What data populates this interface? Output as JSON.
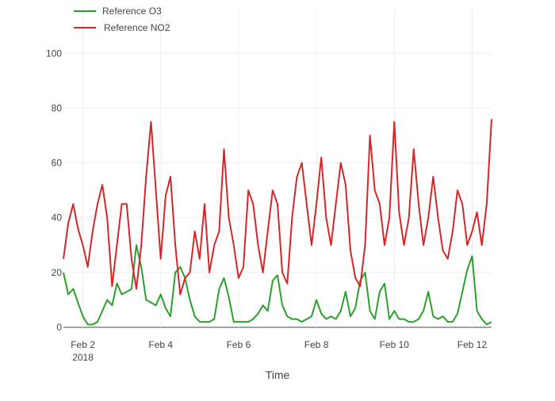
{
  "chart_data": {
    "type": "line",
    "title": "",
    "xlabel": "Time",
    "ylabel": "",
    "ylim": [
      0,
      105
    ],
    "xlim": [
      "2018-02-01 12:00",
      "2018-02-12 12:00"
    ],
    "grid": true,
    "legend_position": "top-left",
    "y_ticks": [
      "0",
      "20",
      "40",
      "60",
      "80",
      "100"
    ],
    "x_ticks": [
      {
        "date": "2018-02-02",
        "label": "Feb 2",
        "sublabel": "2018"
      },
      {
        "date": "2018-02-04",
        "label": "Feb 4",
        "sublabel": ""
      },
      {
        "date": "2018-02-06",
        "label": "Feb 6",
        "sublabel": ""
      },
      {
        "date": "2018-02-08",
        "label": "Feb 8",
        "sublabel": ""
      },
      {
        "date": "2018-02-10",
        "label": "Feb 10",
        "sublabel": ""
      },
      {
        "date": "2018-02-12",
        "label": "Feb 12",
        "sublabel": ""
      }
    ],
    "series": [
      {
        "name": "Reference O3",
        "color": "#2ca02c",
        "x": [
          "2018-02-01 12:00",
          "2018-02-01 15:00",
          "2018-02-01 18:00",
          "2018-02-01 21:00",
          "2018-02-02 00:00",
          "2018-02-02 03:00",
          "2018-02-02 06:00",
          "2018-02-02 09:00",
          "2018-02-02 12:00",
          "2018-02-02 15:00",
          "2018-02-02 18:00",
          "2018-02-02 21:00",
          "2018-02-03 00:00",
          "2018-02-03 03:00",
          "2018-02-03 06:00",
          "2018-02-03 09:00",
          "2018-02-03 12:00",
          "2018-02-03 15:00",
          "2018-02-03 18:00",
          "2018-02-03 21:00",
          "2018-02-04 00:00",
          "2018-02-04 03:00",
          "2018-02-04 06:00",
          "2018-02-04 09:00",
          "2018-02-04 12:00",
          "2018-02-04 15:00",
          "2018-02-04 18:00",
          "2018-02-04 21:00",
          "2018-02-05 00:00",
          "2018-02-05 03:00",
          "2018-02-05 06:00",
          "2018-02-05 09:00",
          "2018-02-05 12:00",
          "2018-02-05 15:00",
          "2018-02-05 18:00",
          "2018-02-05 21:00",
          "2018-02-06 00:00",
          "2018-02-06 03:00",
          "2018-02-06 06:00",
          "2018-02-06 09:00",
          "2018-02-06 12:00",
          "2018-02-06 15:00",
          "2018-02-06 18:00",
          "2018-02-06 21:00",
          "2018-02-07 00:00",
          "2018-02-07 03:00",
          "2018-02-07 06:00",
          "2018-02-07 09:00",
          "2018-02-07 12:00",
          "2018-02-07 15:00",
          "2018-02-07 18:00",
          "2018-02-07 21:00",
          "2018-02-08 00:00",
          "2018-02-08 03:00",
          "2018-02-08 06:00",
          "2018-02-08 09:00",
          "2018-02-08 12:00",
          "2018-02-08 15:00",
          "2018-02-08 18:00",
          "2018-02-08 21:00",
          "2018-02-09 00:00",
          "2018-02-09 03:00",
          "2018-02-09 06:00",
          "2018-02-09 09:00",
          "2018-02-09 12:00",
          "2018-02-09 15:00",
          "2018-02-09 18:00",
          "2018-02-09 21:00",
          "2018-02-10 00:00",
          "2018-02-10 03:00",
          "2018-02-10 06:00",
          "2018-02-10 09:00",
          "2018-02-10 12:00",
          "2018-02-10 15:00",
          "2018-02-10 18:00",
          "2018-02-10 21:00",
          "2018-02-11 00:00",
          "2018-02-11 03:00",
          "2018-02-11 06:00",
          "2018-02-11 09:00",
          "2018-02-11 12:00",
          "2018-02-11 15:00",
          "2018-02-11 18:00",
          "2018-02-11 21:00",
          "2018-02-12 00:00",
          "2018-02-12 03:00",
          "2018-02-12 06:00",
          "2018-02-12 09:00",
          "2018-02-12 12:00"
        ],
        "y": [
          20,
          12,
          14,
          9,
          4,
          1,
          1,
          2,
          6,
          10,
          8,
          16,
          12,
          13,
          14,
          30,
          22,
          10,
          9,
          8,
          12,
          7,
          4,
          20,
          22,
          18,
          10,
          4,
          2,
          2,
          2,
          3,
          14,
          18,
          11,
          2,
          2,
          2,
          2,
          3,
          5,
          8,
          6,
          17,
          19,
          8,
          4,
          3,
          3,
          2,
          3,
          4,
          10,
          5,
          3,
          4,
          3,
          6,
          13,
          4,
          7,
          17,
          20,
          6,
          3,
          13,
          16,
          3,
          6,
          3,
          3,
          2,
          2,
          3,
          6,
          13,
          4,
          3,
          4,
          2,
          2,
          5,
          13,
          21,
          26,
          6,
          3,
          1,
          2
        ]
      },
      {
        "name": "Reference NO2",
        "color": "#d62728",
        "x": [
          "2018-02-01 12:00",
          "2018-02-01 15:00",
          "2018-02-01 18:00",
          "2018-02-01 21:00",
          "2018-02-02 00:00",
          "2018-02-02 03:00",
          "2018-02-02 06:00",
          "2018-02-02 09:00",
          "2018-02-02 12:00",
          "2018-02-02 15:00",
          "2018-02-02 18:00",
          "2018-02-02 21:00",
          "2018-02-03 00:00",
          "2018-02-03 03:00",
          "2018-02-03 06:00",
          "2018-02-03 09:00",
          "2018-02-03 12:00",
          "2018-02-03 15:00",
          "2018-02-03 18:00",
          "2018-02-03 21:00",
          "2018-02-04 00:00",
          "2018-02-04 03:00",
          "2018-02-04 06:00",
          "2018-02-04 09:00",
          "2018-02-04 12:00",
          "2018-02-04 15:00",
          "2018-02-04 18:00",
          "2018-02-04 21:00",
          "2018-02-05 00:00",
          "2018-02-05 03:00",
          "2018-02-05 06:00",
          "2018-02-05 09:00",
          "2018-02-05 12:00",
          "2018-02-05 15:00",
          "2018-02-05 18:00",
          "2018-02-05 21:00",
          "2018-02-06 00:00",
          "2018-02-06 03:00",
          "2018-02-06 06:00",
          "2018-02-06 09:00",
          "2018-02-06 12:00",
          "2018-02-06 15:00",
          "2018-02-06 18:00",
          "2018-02-06 21:00",
          "2018-02-07 00:00",
          "2018-02-07 03:00",
          "2018-02-07 06:00",
          "2018-02-07 09:00",
          "2018-02-07 12:00",
          "2018-02-07 15:00",
          "2018-02-07 18:00",
          "2018-02-07 21:00",
          "2018-02-08 00:00",
          "2018-02-08 03:00",
          "2018-02-08 06:00",
          "2018-02-08 09:00",
          "2018-02-08 12:00",
          "2018-02-08 15:00",
          "2018-02-08 18:00",
          "2018-02-08 21:00",
          "2018-02-09 00:00",
          "2018-02-09 03:00",
          "2018-02-09 06:00",
          "2018-02-09 09:00",
          "2018-02-09 12:00",
          "2018-02-09 15:00",
          "2018-02-09 18:00",
          "2018-02-09 21:00",
          "2018-02-10 00:00",
          "2018-02-10 03:00",
          "2018-02-10 06:00",
          "2018-02-10 09:00",
          "2018-02-10 12:00",
          "2018-02-10 15:00",
          "2018-02-10 18:00",
          "2018-02-10 21:00",
          "2018-02-11 00:00",
          "2018-02-11 03:00",
          "2018-02-11 06:00",
          "2018-02-11 09:00",
          "2018-02-11 12:00",
          "2018-02-11 15:00",
          "2018-02-11 18:00",
          "2018-02-11 21:00",
          "2018-02-12 00:00",
          "2018-02-12 03:00",
          "2018-02-12 06:00",
          "2018-02-12 09:00",
          "2018-02-12 12:00"
        ],
        "y": [
          25,
          38,
          45,
          36,
          30,
          22,
          35,
          45,
          52,
          40,
          15,
          30,
          45,
          45,
          25,
          14,
          30,
          55,
          75,
          50,
          25,
          48,
          55,
          30,
          12,
          18,
          20,
          35,
          25,
          45,
          20,
          30,
          35,
          65,
          40,
          30,
          18,
          22,
          50,
          45,
          30,
          20,
          35,
          50,
          45,
          20,
          16,
          40,
          55,
          60,
          45,
          30,
          45,
          62,
          40,
          30,
          45,
          60,
          52,
          28,
          18,
          15,
          30,
          70,
          50,
          45,
          30,
          40,
          75,
          42,
          30,
          40,
          65,
          45,
          30,
          40,
          55,
          40,
          28,
          25,
          35,
          50,
          45,
          30,
          35,
          42,
          30,
          45,
          76
        ]
      }
    ]
  }
}
